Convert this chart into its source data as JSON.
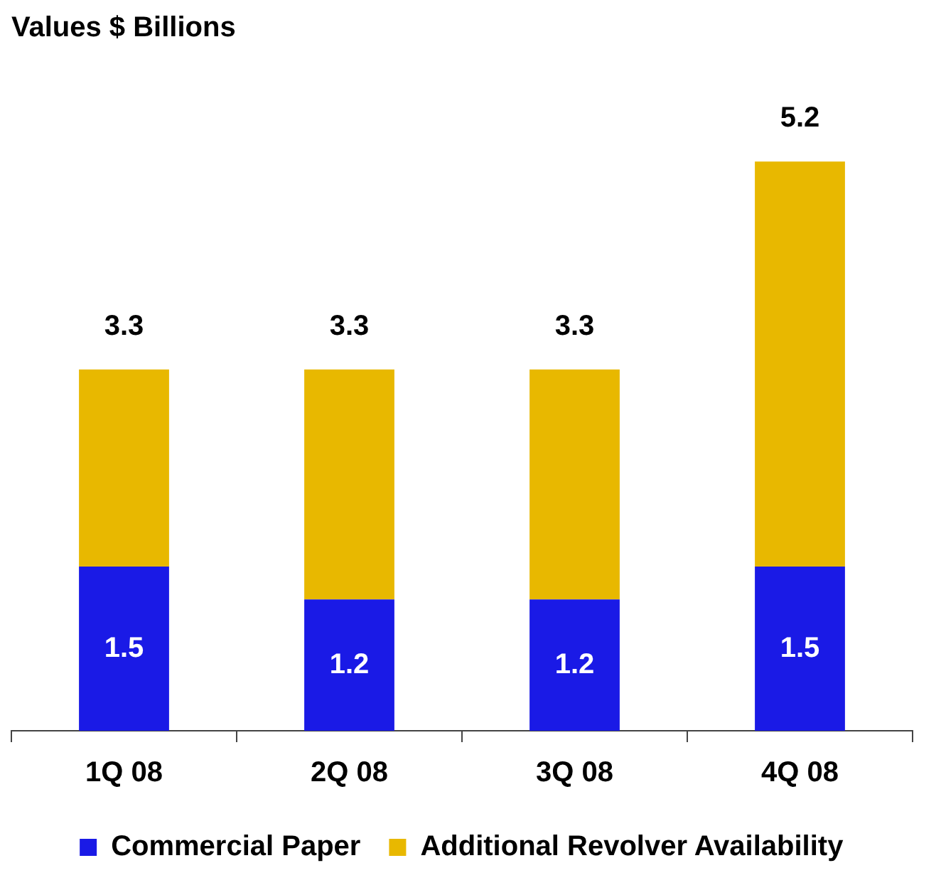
{
  "chart_data": {
    "type": "bar",
    "title": "Values $ Billions",
    "categories": [
      "1Q 08",
      "2Q 08",
      "3Q 08",
      "4Q 08"
    ],
    "stacked": true,
    "legend": "bottom",
    "series": [
      {
        "name": "Commercial Paper",
        "color": "#1a1ae6",
        "values": [
          1.5,
          1.2,
          1.2,
          1.5
        ],
        "value_labels": [
          "1.5",
          "1.2",
          "1.2",
          "1.5"
        ]
      },
      {
        "name": "Additional Revolver Availability",
        "color": "#e8b800",
        "values": [
          1.8,
          2.1,
          2.1,
          3.7
        ]
      }
    ],
    "totals": [
      "3.3",
      "3.3",
      "3.3",
      "5.2"
    ]
  }
}
